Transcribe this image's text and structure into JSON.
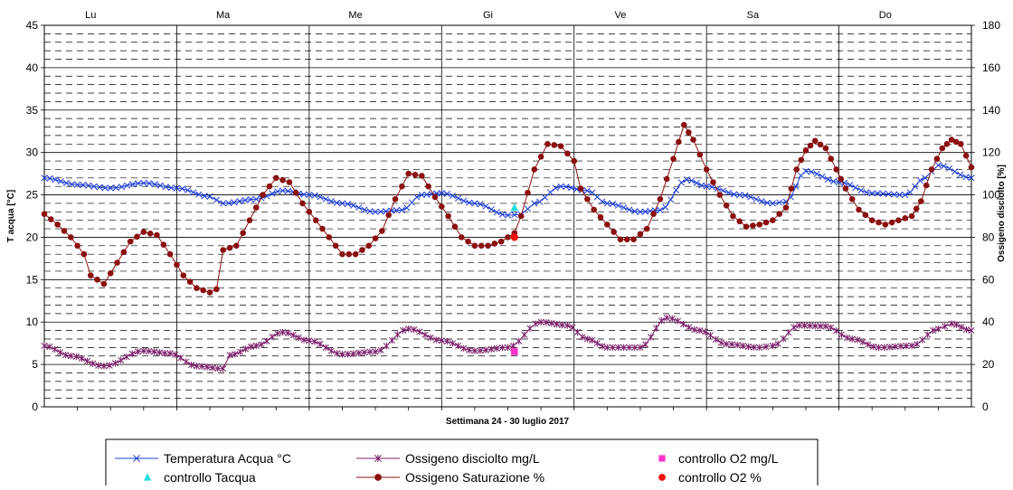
{
  "chart_data": {
    "type": "line",
    "days": [
      "Lu",
      "Ma",
      "Me",
      "Gi",
      "Ve",
      "Sa",
      "Do"
    ],
    "xlabel": "Settimana   24 - 30 luglio 2017",
    "ylabel_left": "T acqua [°C]",
    "ylabel_right": "Ossigeno disciolto [%]",
    "ylim_left": [
      0,
      45
    ],
    "ylim_right": [
      0,
      180
    ],
    "yticks_left": [
      "0",
      "5",
      "10",
      "15",
      "20",
      "25",
      "30",
      "35",
      "40",
      "45"
    ],
    "yticks_right": [
      "0",
      "20",
      "40",
      "60",
      "80",
      "100",
      "120",
      "140",
      "160",
      "180"
    ],
    "xlim_days": [
      0,
      7
    ],
    "grid": true,
    "legend_position": "bottom",
    "series": [
      {
        "name": "Temperatura Acqua °C",
        "axis": "left",
        "color": "#1f3fd6",
        "marker": "x",
        "points": [
          [
            0,
            27.0
          ],
          [
            0.25,
            26.2
          ],
          [
            0.5,
            25.8
          ],
          [
            0.75,
            26.4
          ],
          [
            1.0,
            25.8
          ],
          [
            1.25,
            24.8
          ],
          [
            1.35,
            24.0
          ],
          [
            1.6,
            24.5
          ],
          [
            1.8,
            25.5
          ],
          [
            2.0,
            25.0
          ],
          [
            2.25,
            24.0
          ],
          [
            2.5,
            23.0
          ],
          [
            2.7,
            23.2
          ],
          [
            2.85,
            25.0
          ],
          [
            3.0,
            25.2
          ],
          [
            3.25,
            24.0
          ],
          [
            3.5,
            22.6
          ],
          [
            3.6,
            22.7
          ],
          [
            3.7,
            24.0
          ],
          [
            3.9,
            26.0
          ],
          [
            4.1,
            25.5
          ],
          [
            4.25,
            24.0
          ],
          [
            4.5,
            23.0
          ],
          [
            4.65,
            23.2
          ],
          [
            4.85,
            26.8
          ],
          [
            5.0,
            26.0
          ],
          [
            5.25,
            25.0
          ],
          [
            5.5,
            24.0
          ],
          [
            5.6,
            24.2
          ],
          [
            5.75,
            27.8
          ],
          [
            6.0,
            26.5
          ],
          [
            6.25,
            25.2
          ],
          [
            6.5,
            25.0
          ],
          [
            6.65,
            27.0
          ],
          [
            6.75,
            28.5
          ],
          [
            7.0,
            27.0
          ]
        ]
      },
      {
        "name": "Ossigeno disciolto mg/L",
        "axis": "left",
        "color": "#7a1f6a",
        "marker": "star",
        "points": [
          [
            0,
            7.2
          ],
          [
            0.2,
            6.0
          ],
          [
            0.45,
            4.8
          ],
          [
            0.75,
            6.6
          ],
          [
            0.95,
            6.3
          ],
          [
            1.15,
            4.8
          ],
          [
            1.35,
            4.5
          ],
          [
            1.4,
            6.1
          ],
          [
            1.6,
            7.2
          ],
          [
            1.8,
            8.8
          ],
          [
            2.0,
            7.8
          ],
          [
            2.25,
            6.2
          ],
          [
            2.5,
            6.5
          ],
          [
            2.75,
            9.2
          ],
          [
            3.0,
            7.8
          ],
          [
            3.25,
            6.6
          ],
          [
            3.5,
            7.0
          ],
          [
            3.75,
            10.0
          ],
          [
            3.95,
            9.6
          ],
          [
            4.1,
            8.0
          ],
          [
            4.25,
            7.0
          ],
          [
            4.5,
            7.0
          ],
          [
            4.7,
            10.5
          ],
          [
            4.95,
            9.0
          ],
          [
            5.15,
            7.4
          ],
          [
            5.4,
            7.0
          ],
          [
            5.5,
            7.2
          ],
          [
            5.7,
            9.6
          ],
          [
            5.9,
            9.5
          ],
          [
            6.1,
            8.0
          ],
          [
            6.3,
            7.0
          ],
          [
            6.55,
            7.2
          ],
          [
            6.75,
            9.2
          ],
          [
            6.85,
            9.8
          ],
          [
            7.0,
            9.0
          ]
        ]
      },
      {
        "name": "Ossigeno Saturazione %",
        "axis": "right",
        "color": "#8b1010",
        "marker": "circle",
        "points": [
          [
            0,
            91.0
          ],
          [
            0.1,
            86
          ],
          [
            0.2,
            80
          ],
          [
            0.3,
            72
          ],
          [
            0.35,
            62
          ],
          [
            0.45,
            58
          ],
          [
            0.55,
            68
          ],
          [
            0.65,
            78
          ],
          [
            0.75,
            82.5
          ],
          [
            0.85,
            81
          ],
          [
            0.95,
            72
          ],
          [
            1.05,
            62
          ],
          [
            1.15,
            56
          ],
          [
            1.25,
            54
          ],
          [
            1.3,
            55.5
          ],
          [
            1.35,
            74
          ],
          [
            1.45,
            76
          ],
          [
            1.55,
            88
          ],
          [
            1.65,
            100
          ],
          [
            1.75,
            108
          ],
          [
            1.85,
            106
          ],
          [
            1.95,
            96
          ],
          [
            2.05,
            88
          ],
          [
            2.15,
            80
          ],
          [
            2.25,
            72
          ],
          [
            2.35,
            72
          ],
          [
            2.45,
            76
          ],
          [
            2.55,
            83
          ],
          [
            2.65,
            98
          ],
          [
            2.75,
            110
          ],
          [
            2.85,
            109
          ],
          [
            2.95,
            99
          ],
          [
            3.05,
            90
          ],
          [
            3.15,
            80
          ],
          [
            3.25,
            76
          ],
          [
            3.35,
            76
          ],
          [
            3.45,
            78
          ],
          [
            3.55,
            82
          ],
          [
            3.6,
            90
          ],
          [
            3.7,
            112
          ],
          [
            3.8,
            124
          ],
          [
            3.9,
            123
          ],
          [
            4.0,
            116
          ],
          [
            4.05,
            103
          ],
          [
            4.15,
            93
          ],
          [
            4.25,
            86
          ],
          [
            4.35,
            79
          ],
          [
            4.45,
            79
          ],
          [
            4.55,
            84
          ],
          [
            4.65,
            98
          ],
          [
            4.75,
            117
          ],
          [
            4.83,
            133
          ],
          [
            4.9,
            126
          ],
          [
            5.0,
            112
          ],
          [
            5.1,
            100
          ],
          [
            5.2,
            90
          ],
          [
            5.3,
            85
          ],
          [
            5.4,
            86
          ],
          [
            5.5,
            88
          ],
          [
            5.6,
            94
          ],
          [
            5.68,
            112
          ],
          [
            5.75,
            121
          ],
          [
            5.82,
            125.5
          ],
          [
            5.9,
            122
          ],
          [
            5.98,
            112
          ],
          [
            6.05,
            103
          ],
          [
            6.15,
            93
          ],
          [
            6.25,
            88
          ],
          [
            6.35,
            86
          ],
          [
            6.45,
            88
          ],
          [
            6.55,
            90
          ],
          [
            6.62,
            97
          ],
          [
            6.7,
            112
          ],
          [
            6.78,
            122
          ],
          [
            6.85,
            126
          ],
          [
            6.92,
            124
          ],
          [
            7.0,
            113
          ]
        ]
      }
    ],
    "control_points": [
      {
        "name": "controllo O2 mg/L",
        "axis": "left",
        "x": 3.55,
        "y": 6.5,
        "color": "#ff33cc",
        "marker": "square"
      },
      {
        "name": "controllo Tacqua",
        "axis": "left",
        "x": 3.55,
        "y": 23.5,
        "color": "#22dddd",
        "marker": "triangle"
      },
      {
        "name": "controllo O2 %",
        "axis": "right",
        "x": 3.55,
        "y": 80,
        "color": "#ee1111",
        "marker": "circle"
      }
    ],
    "legend": [
      "Temperatura Acqua °C",
      "Ossigeno disciolto mg/L",
      "controllo O2 mg/L",
      "controllo Tacqua",
      "Ossigeno Saturazione %",
      "controllo O2 %"
    ]
  }
}
